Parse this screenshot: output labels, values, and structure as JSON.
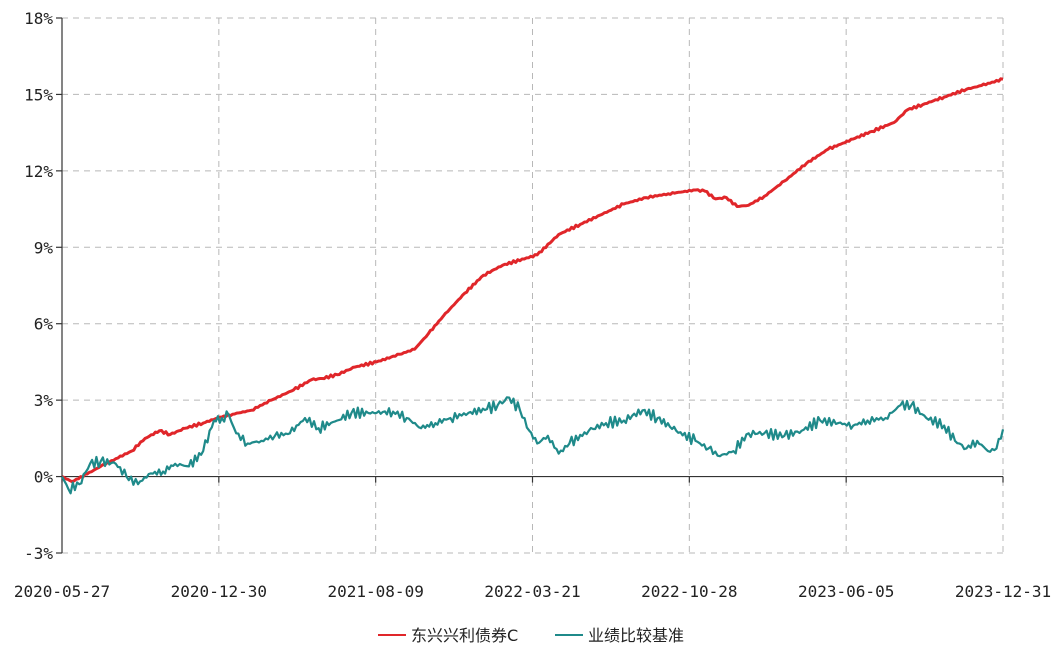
{
  "chart_data": {
    "type": "line",
    "title": "",
    "xlabel": "",
    "ylabel": "",
    "x_tick_labels": [
      "2020-05-27",
      "2020-12-30",
      "2021-08-09",
      "2022-03-21",
      "2022-10-28",
      "2023-06-05",
      "2023-12-31"
    ],
    "y_tick_labels": [
      "-3%",
      "0%",
      "3%",
      "6%",
      "9%",
      "12%",
      "15%",
      "18%"
    ],
    "y_ticks": [
      -3,
      0,
      3,
      6,
      9,
      12,
      15,
      18
    ],
    "ylim": [
      -3,
      18
    ],
    "xlim": [
      "2020-05-27",
      "2023-12-31"
    ],
    "grid": true,
    "legend_position": "bottom",
    "series": [
      {
        "name": "东兴兴利债券C",
        "color": "#e0262a",
        "points": [
          [
            "2020-05-27",
            0.0
          ],
          [
            "2020-06-10",
            -0.2
          ],
          [
            "2020-07-01",
            0.1
          ],
          [
            "2020-07-20",
            0.4
          ],
          [
            "2020-08-10",
            0.7
          ],
          [
            "2020-09-01",
            1.0
          ],
          [
            "2020-09-20",
            1.5
          ],
          [
            "2020-10-10",
            1.8
          ],
          [
            "2020-10-25",
            1.65
          ],
          [
            "2020-11-15",
            1.9
          ],
          [
            "2020-12-10",
            2.1
          ],
          [
            "2020-12-30",
            2.3
          ],
          [
            "2021-01-20",
            2.45
          ],
          [
            "2021-02-15",
            2.6
          ],
          [
            "2021-03-15",
            3.0
          ],
          [
            "2021-04-15",
            3.4
          ],
          [
            "2021-05-10",
            3.8
          ],
          [
            "2021-05-25",
            3.85
          ],
          [
            "2021-06-15",
            4.0
          ],
          [
            "2021-07-10",
            4.3
          ],
          [
            "2021-08-09",
            4.5
          ],
          [
            "2021-09-10",
            4.8
          ],
          [
            "2021-10-01",
            5.0
          ],
          [
            "2021-10-20",
            5.6
          ],
          [
            "2021-11-10",
            6.3
          ],
          [
            "2021-12-10",
            7.2
          ],
          [
            "2022-01-05",
            7.9
          ],
          [
            "2022-02-01",
            8.3
          ],
          [
            "2022-03-21",
            8.7
          ],
          [
            "2022-04-20",
            9.5
          ],
          [
            "2022-05-20",
            9.9
          ],
          [
            "2022-06-20",
            10.3
          ],
          [
            "2022-07-20",
            10.7
          ],
          [
            "2022-08-20",
            10.95
          ],
          [
            "2022-09-20",
            11.1
          ],
          [
            "2022-10-28",
            11.25
          ],
          [
            "2022-11-10",
            11.2
          ],
          [
            "2022-11-25",
            10.9
          ],
          [
            "2022-12-10",
            10.95
          ],
          [
            "2022-12-25",
            10.6
          ],
          [
            "2023-01-10",
            10.65
          ],
          [
            "2023-02-01",
            11.0
          ],
          [
            "2023-03-01",
            11.6
          ],
          [
            "2023-04-01",
            12.3
          ],
          [
            "2023-05-01",
            12.85
          ],
          [
            "2023-06-05",
            13.25
          ],
          [
            "2023-07-01",
            13.55
          ],
          [
            "2023-08-01",
            13.9
          ],
          [
            "2023-08-20",
            14.4
          ],
          [
            "2023-09-10",
            14.6
          ],
          [
            "2023-10-10",
            14.9
          ],
          [
            "2023-11-10",
            15.2
          ],
          [
            "2023-12-01",
            15.35
          ],
          [
            "2023-12-31",
            15.6
          ]
        ]
      },
      {
        "name": "业绩比较基准",
        "color": "#1f8a8a",
        "points": [
          [
            "2020-05-27",
            0.0
          ],
          [
            "2020-06-05",
            -0.5
          ],
          [
            "2020-06-20",
            -0.3
          ],
          [
            "2020-07-05",
            0.5
          ],
          [
            "2020-07-20",
            0.6
          ],
          [
            "2020-08-10",
            0.5
          ],
          [
            "2020-08-25",
            0.0
          ],
          [
            "2020-09-10",
            -0.3
          ],
          [
            "2020-09-25",
            0.1
          ],
          [
            "2020-10-15",
            0.2
          ],
          [
            "2020-11-01",
            0.5
          ],
          [
            "2020-11-20",
            0.4
          ],
          [
            "2020-12-10",
            1.0
          ],
          [
            "2020-12-25",
            2.2
          ],
          [
            "2021-01-05",
            2.3
          ],
          [
            "2021-01-15",
            2.4
          ],
          [
            "2021-01-25",
            1.7
          ],
          [
            "2021-02-10",
            1.3
          ],
          [
            "2021-03-01",
            1.4
          ],
          [
            "2021-03-20",
            1.6
          ],
          [
            "2021-04-10",
            1.7
          ],
          [
            "2021-05-01",
            2.3
          ],
          [
            "2021-05-20",
            1.9
          ],
          [
            "2021-06-15",
            2.2
          ],
          [
            "2021-07-05",
            2.5
          ],
          [
            "2021-08-09",
            2.5
          ],
          [
            "2021-09-01",
            2.55
          ],
          [
            "2021-09-20",
            2.3
          ],
          [
            "2021-10-10",
            1.9
          ],
          [
            "2021-10-30",
            2.1
          ],
          [
            "2021-11-20",
            2.3
          ],
          [
            "2021-12-15",
            2.5
          ],
          [
            "2022-01-10",
            2.65
          ],
          [
            "2022-01-25",
            2.8
          ],
          [
            "2022-02-10",
            3.1
          ],
          [
            "2022-02-25",
            2.6
          ],
          [
            "2022-03-10",
            1.8
          ],
          [
            "2022-03-21",
            1.3
          ],
          [
            "2022-04-05",
            1.6
          ],
          [
            "2022-04-20",
            0.9
          ],
          [
            "2022-05-05",
            1.3
          ],
          [
            "2022-06-01",
            1.8
          ],
          [
            "2022-06-25",
            2.1
          ],
          [
            "2022-07-20",
            2.2
          ],
          [
            "2022-08-15",
            2.6
          ],
          [
            "2022-09-05",
            2.3
          ],
          [
            "2022-10-01",
            1.8
          ],
          [
            "2022-10-28",
            1.4
          ],
          [
            "2022-11-15",
            1.1
          ],
          [
            "2022-12-01",
            0.8
          ],
          [
            "2022-12-20",
            1.0
          ],
          [
            "2023-01-10",
            1.7
          ],
          [
            "2023-02-01",
            1.7
          ],
          [
            "2023-03-01",
            1.6
          ],
          [
            "2023-03-25",
            1.8
          ],
          [
            "2023-04-20",
            2.2
          ],
          [
            "2023-05-15",
            2.1
          ],
          [
            "2023-06-05",
            2.0
          ],
          [
            "2023-06-25",
            2.2
          ],
          [
            "2023-07-20",
            2.3
          ],
          [
            "2023-08-10",
            2.8
          ],
          [
            "2023-08-25",
            2.8
          ],
          [
            "2023-09-15",
            2.3
          ],
          [
            "2023-10-10",
            2.0
          ],
          [
            "2023-10-25",
            1.4
          ],
          [
            "2023-11-10",
            1.1
          ],
          [
            "2023-11-25",
            1.4
          ],
          [
            "2023-12-10",
            1.0
          ],
          [
            "2023-12-22",
            1.1
          ],
          [
            "2023-12-31",
            1.85
          ]
        ]
      }
    ]
  }
}
